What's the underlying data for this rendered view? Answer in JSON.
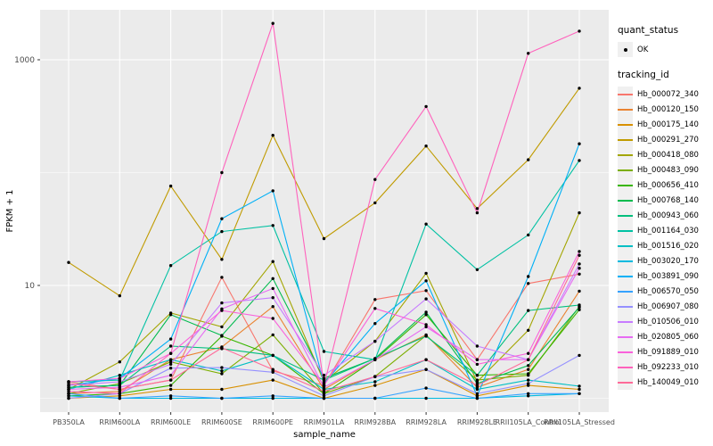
{
  "legend": {
    "quant_status_title": "quant_status",
    "quant_status_items": [
      {
        "label": "OK",
        "symbol": "point"
      }
    ],
    "tracking_title": "tracking_id",
    "key_box_color": "#F0F0F0"
  },
  "chart_data": {
    "type": "line",
    "title": "",
    "xlabel": "sample_name",
    "ylabel": "FPKM + 1",
    "y_scale": "log10",
    "y_tick_labels": [
      "10",
      "1000"
    ],
    "y_major_breaks": [
      10,
      1000
    ],
    "y_minor_breaks": [
      1,
      100
    ],
    "ylim": [
      0.75,
      2800
    ],
    "grid": true,
    "legend_position": "right",
    "panel_bg": "#EBEBEB",
    "grid_color": "#FFFFFF",
    "point_color": "#000000",
    "tick_label_color": "#4D4D4D",
    "axis_title_color": "#000000",
    "categories": [
      "PB350LA",
      "RRIM600LA",
      "RRIM600LE",
      "RRIM600SE",
      "RRIM600PE",
      "RRIM901LA",
      "RRIM928BA",
      "RRIM928LA",
      "RRIM928LE",
      "RRII105LA_Control",
      "RRII105LA_Stressed"
    ],
    "series": [
      {
        "name": "Hb_000072_340",
        "color": "#F8766D",
        "values": [
          1.4,
          1.2,
          1.45,
          11.8,
          1.75,
          1.3,
          7.5,
          9.0,
          2.2,
          10.4,
          12.6
        ]
      },
      {
        "name": "Hb_000120_150",
        "color": "#EA8331",
        "values": [
          1.1,
          1.15,
          2.2,
          2.85,
          6.5,
          1.2,
          2.2,
          3.65,
          1.25,
          1.8,
          8.9
        ]
      },
      {
        "name": "Hb_000175_140",
        "color": "#D89000",
        "values": [
          1.0,
          1.05,
          1.2,
          1.2,
          1.45,
          1.0,
          1.3,
          1.8,
          1.05,
          1.3,
          1.2
        ]
      },
      {
        "name": "Hb_000291_270",
        "color": "#C09B00",
        "values": [
          16,
          8.1,
          76,
          17,
          214,
          26,
          54,
          172,
          48,
          130,
          560
        ]
      },
      {
        "name": "Hb_000418_080",
        "color": "#A3A500",
        "values": [
          1.2,
          2.1,
          5.7,
          4.3,
          16.3,
          1.4,
          3.2,
          12.8,
          1.4,
          4.0,
          44
        ]
      },
      {
        "name": "Hb_000483_090",
        "color": "#7CAE00",
        "values": [
          1.1,
          1.35,
          2.1,
          1.65,
          3.65,
          1.1,
          1.56,
          3.6,
          1.45,
          1.6,
          6.5
        ]
      },
      {
        "name": "Hb_000656_410",
        "color": "#39B600",
        "values": [
          1.05,
          1.1,
          1.3,
          3.55,
          2.4,
          1.1,
          2.2,
          5.5,
          1.6,
          1.65,
          6.1
        ]
      },
      {
        "name": "Hb_000768_140",
        "color": "#00BB4E",
        "values": [
          1.25,
          1.3,
          5.5,
          3.6,
          11.5,
          1.5,
          2.25,
          5.8,
          1.35,
          1.95,
          6.4
        ]
      },
      {
        "name": "Hb_000943_060",
        "color": "#00BF7D",
        "values": [
          1.25,
          1.3,
          2.9,
          2.75,
          2.4,
          1.45,
          2.25,
          3.55,
          1.6,
          6.0,
          6.7
        ]
      },
      {
        "name": "Hb_001164_030",
        "color": "#00C1A3",
        "values": [
          1.4,
          1.45,
          15,
          30,
          34,
          2.6,
          2.2,
          35,
          13.8,
          28,
          128
        ]
      },
      {
        "name": "Hb_001516_020",
        "color": "#00BFC4",
        "values": [
          1.2,
          1.6,
          2.2,
          1.75,
          2.4,
          1.2,
          1.4,
          2.2,
          1.2,
          1.45,
          1.28
        ]
      },
      {
        "name": "Hb_003020_170",
        "color": "#00BAE0",
        "values": [
          1.05,
          1.0,
          1.0,
          1.0,
          1.0,
          1.0,
          1.0,
          1.0,
          1.0,
          1.05,
          1.1
        ]
      },
      {
        "name": "Hb_003891_090",
        "color": "#00B0F6",
        "values": [
          1.3,
          1.5,
          3.35,
          39,
          69,
          1.35,
          4.6,
          11,
          1.05,
          12,
          180
        ]
      },
      {
        "name": "Hb_006570_050",
        "color": "#35A2FF",
        "values": [
          1.1,
          1.0,
          1.05,
          1.0,
          1.05,
          1.0,
          1.0,
          1.23,
          1.0,
          1.1,
          1.1
        ]
      },
      {
        "name": "Hb_006907_080",
        "color": "#9590FF",
        "values": [
          1.0,
          1.1,
          1.85,
          1.87,
          1.7,
          1.05,
          1.55,
          1.8,
          1.1,
          1.35,
          2.4
        ]
      },
      {
        "name": "Hb_010506_010",
        "color": "#C77CFF",
        "values": [
          1.3,
          1.4,
          2.0,
          7.0,
          7.8,
          1.6,
          3.2,
          7.6,
          2.9,
          2.2,
          15.5
        ]
      },
      {
        "name": "Hb_020805_060",
        "color": "#E76BF3",
        "values": [
          1.2,
          1.25,
          1.6,
          6.2,
          9.4,
          1.25,
          2.2,
          4.3,
          2.2,
          2.2,
          14.2
        ]
      },
      {
        "name": "Hb_091889_010",
        "color": "#FA62DB",
        "values": [
          1.4,
          1.5,
          2.5,
          6.0,
          5.1,
          1.3,
          6.25,
          4.5,
          2.0,
          2.5,
          20
        ]
      },
      {
        "name": "Hb_092233_010",
        "color": "#FF62BC",
        "values": [
          1.15,
          1.1,
          2.5,
          100,
          2100,
          1.3,
          87,
          385,
          44,
          1140,
          1795
        ]
      },
      {
        "name": "Hb_140049_010",
        "color": "#FF6A98",
        "values": [
          1.35,
          1.2,
          1.45,
          2.8,
          1.8,
          1.15,
          1.56,
          2.2,
          1.3,
          2.2,
          18.5
        ]
      }
    ]
  }
}
